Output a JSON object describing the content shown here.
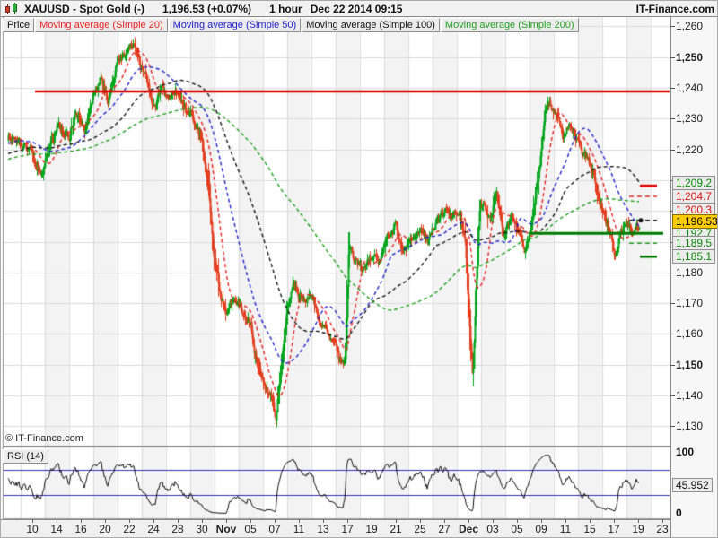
{
  "header": {
    "title": "XAUUSD - Spot Gold (-)",
    "price": "1,196.53 (+0.07%)",
    "timeframe": "1 hour",
    "timestamp": "Dec 22 2014 09:15",
    "brand": "IT-Finance.com"
  },
  "legend": {
    "price_label": "Price",
    "items": [
      {
        "label": "Moving average (Simple 20)",
        "color": "#e82020",
        "period": 20
      },
      {
        "label": "Moving average (Simple 50)",
        "color": "#2222cc",
        "period": 50
      },
      {
        "label": "Moving average (Simple 100)",
        "color": "#151515",
        "period": 100
      },
      {
        "label": "Moving average (Simple 200)",
        "color": "#1fa01f",
        "period": 200
      }
    ]
  },
  "watermark": "© IT-Finance.com",
  "rsi_pane": {
    "label": "RSI (14)",
    "max_label": "100",
    "min_label": "0",
    "value_label": "45.952"
  },
  "price_labels": [
    {
      "text": "1,209.2",
      "price": 1209.2,
      "style": "green"
    },
    {
      "text": "1,204.7",
      "price": 1204.7,
      "style": "red"
    },
    {
      "text": "1,200.3",
      "price": 1200.3,
      "style": "red"
    },
    {
      "text": "1,196.53",
      "price": 1196.53,
      "style": "cur"
    },
    {
      "text": "1,192.7",
      "price": 1192.7,
      "style": "green"
    },
    {
      "text": "1,189.5",
      "price": 1189.5,
      "style": "green"
    },
    {
      "text": "1,185.1",
      "price": 1185.1,
      "style": "green"
    }
  ],
  "chart_data": {
    "type": "candlestick",
    "symbol": "XAUUSD",
    "name": "Spot Gold",
    "timeframe": "1 hour",
    "last_price": 1196.53,
    "change_pct": 0.07,
    "colors": {
      "up": "#00A61B",
      "down": "#E33F20",
      "grid": "#dcdcdc",
      "stripe": "#f3f3f3",
      "res_line": "#dd0000",
      "sup_line": "#007a00",
      "rsi_line": "#111111",
      "rsi_level": "#3333bb"
    },
    "y_ticks": [
      {
        "t": "1,260",
        "v": 1260,
        "bold": false
      },
      {
        "t": "1,250",
        "v": 1250,
        "bold": true
      },
      {
        "t": "1,240",
        "v": 1240,
        "bold": false
      },
      {
        "t": "1,230",
        "v": 1230,
        "bold": false
      },
      {
        "t": "1,220",
        "v": 1220,
        "bold": false
      },
      {
        "t": "1,210",
        "v": 1210,
        "bold": false
      },
      {
        "t": "1,200",
        "v": 1200,
        "bold": false
      },
      {
        "t": "1,190",
        "v": 1190,
        "bold": false
      },
      {
        "t": "1,180",
        "v": 1180,
        "bold": false
      },
      {
        "t": "1,170",
        "v": 1170,
        "bold": false
      },
      {
        "t": "1,160",
        "v": 1160,
        "bold": false
      },
      {
        "t": "1,150",
        "v": 1150,
        "bold": true
      },
      {
        "t": "1,140",
        "v": 1140,
        "bold": false
      },
      {
        "t": "1,130",
        "v": 1130,
        "bold": false
      }
    ],
    "x_labels": [
      {
        "t": "10"
      },
      {
        "t": "14"
      },
      {
        "t": "16"
      },
      {
        "t": "20"
      },
      {
        "t": "22"
      },
      {
        "t": "24"
      },
      {
        "t": "28"
      },
      {
        "t": "30"
      },
      {
        "t": "Nov",
        "bold": true
      },
      {
        "t": "05"
      },
      {
        "t": "07"
      },
      {
        "t": "11"
      },
      {
        "t": "13"
      },
      {
        "t": "17"
      },
      {
        "t": "19"
      },
      {
        "t": "21"
      },
      {
        "t": "25"
      },
      {
        "t": "27"
      },
      {
        "t": "Dec",
        "bold": true
      },
      {
        "t": "03"
      },
      {
        "t": "05"
      },
      {
        "t": "09"
      },
      {
        "t": "11"
      },
      {
        "t": "15"
      },
      {
        "t": "17"
      },
      {
        "t": "19"
      },
      {
        "t": "23"
      }
    ],
    "horizontal_lines": [
      {
        "price": 1238.8,
        "color": "#dd0000",
        "width": 2.5,
        "x_from": 38,
        "x_to": 746
      },
      {
        "price": 1192.7,
        "color": "#007a00",
        "width": 3,
        "x_from": 588,
        "x_to": 738
      }
    ],
    "margin_marks": [
      {
        "price": 1208.2,
        "style": "solid",
        "color": "#dd0000",
        "width": 2.5
      },
      {
        "price": 1204.7,
        "style": "dashed",
        "color": "#e82020",
        "width": 1.5
      },
      {
        "price": 1196.9,
        "style": "dashdot",
        "color": "#111111",
        "width": 1.5
      },
      {
        "price": 1189.5,
        "style": "dashed",
        "color": "#1fa01f",
        "width": 1.5
      },
      {
        "price": 1185.1,
        "style": "solid",
        "color": "#007a00",
        "width": 2.5
      }
    ],
    "moving_averages": [
      20,
      50,
      100,
      200
    ],
    "rsi": {
      "period": 14,
      "last": 45.952,
      "levels": [
        70,
        30
      ]
    },
    "bars_per_day": 13.5,
    "y_range_displayed": [
      1130,
      1260
    ],
    "price_path_anchors": [
      [
        -16.8,
        1206
      ],
      [
        -12,
        1220
      ],
      [
        -8,
        1213
      ],
      [
        -4,
        1222
      ],
      [
        -2,
        1224
      ],
      [
        -1,
        1221
      ],
      [
        0,
        1219
      ],
      [
        0.7,
        1212
      ],
      [
        1.5,
        1222
      ],
      [
        2.2,
        1228
      ],
      [
        3,
        1223
      ],
      [
        3.6,
        1232
      ],
      [
        4.3,
        1226
      ],
      [
        5,
        1238
      ],
      [
        5.6,
        1243
      ],
      [
        6.2,
        1236
      ],
      [
        7,
        1247
      ],
      [
        7.6,
        1251
      ],
      [
        8.3,
        1254
      ],
      [
        8.8,
        1248
      ],
      [
        9.4,
        1242
      ],
      [
        10,
        1234
      ],
      [
        10.7,
        1240
      ],
      [
        11.4,
        1236
      ],
      [
        12,
        1240
      ],
      [
        12.7,
        1233
      ],
      [
        13.4,
        1229
      ],
      [
        14,
        1222
      ],
      [
        14.5,
        1209
      ],
      [
        15,
        1186
      ],
      [
        15.5,
        1173
      ],
      [
        16,
        1167
      ],
      [
        16.6,
        1171
      ],
      [
        17.3,
        1168
      ],
      [
        18,
        1163
      ],
      [
        18.5,
        1152
      ],
      [
        19,
        1145
      ],
      [
        19.6,
        1140
      ],
      [
        20.1,
        1133
      ],
      [
        20.45,
        1146
      ],
      [
        21,
        1168
      ],
      [
        21.6,
        1176
      ],
      [
        22.3,
        1170
      ],
      [
        23,
        1173
      ],
      [
        23.6,
        1166
      ],
      [
        24.3,
        1163
      ],
      [
        25,
        1155
      ],
      [
        25.5,
        1149
      ],
      [
        25.85,
        1152
      ],
      [
        26.1,
        1188
      ],
      [
        26.6,
        1184
      ],
      [
        27.3,
        1180
      ],
      [
        28,
        1186
      ],
      [
        28.7,
        1184
      ],
      [
        29.4,
        1192
      ],
      [
        30,
        1196
      ],
      [
        30.6,
        1185
      ],
      [
        31.2,
        1191
      ],
      [
        32,
        1194
      ],
      [
        32.7,
        1190
      ],
      [
        33.4,
        1196
      ],
      [
        34,
        1200
      ],
      [
        34.6,
        1197
      ],
      [
        35.2,
        1200
      ],
      [
        35.7,
        1192
      ],
      [
        36.1,
        1160
      ],
      [
        36.35,
        1147
      ],
      [
        36.6,
        1175
      ],
      [
        36.9,
        1200
      ],
      [
        37.3,
        1204
      ],
      [
        37.8,
        1196
      ],
      [
        38.3,
        1206
      ],
      [
        38.9,
        1192
      ],
      [
        39.5,
        1199
      ],
      [
        40.1,
        1194
      ],
      [
        40.6,
        1187
      ],
      [
        41.2,
        1196
      ],
      [
        41.8,
        1213
      ],
      [
        42.3,
        1230
      ],
      [
        42.7,
        1236
      ],
      [
        43.2,
        1232
      ],
      [
        43.8,
        1225
      ],
      [
        44.4,
        1228
      ],
      [
        45,
        1222
      ],
      [
        45.6,
        1218
      ],
      [
        46.2,
        1213
      ],
      [
        46.8,
        1204
      ],
      [
        47.3,
        1197
      ],
      [
        47.8,
        1190
      ],
      [
        48.1,
        1184.5
      ],
      [
        48.5,
        1193
      ],
      [
        49,
        1197
      ],
      [
        49.5,
        1192
      ],
      [
        50,
        1195
      ],
      [
        50.3,
        1196.5
      ]
    ],
    "forced_extremes": [
      {
        "day": 8.5,
        "high": 1255.5
      },
      {
        "day": 20.1,
        "low": 1130.5
      },
      {
        "day": 36.35,
        "low": 1143
      },
      {
        "day": 48.1,
        "low": 1184
      }
    ]
  }
}
